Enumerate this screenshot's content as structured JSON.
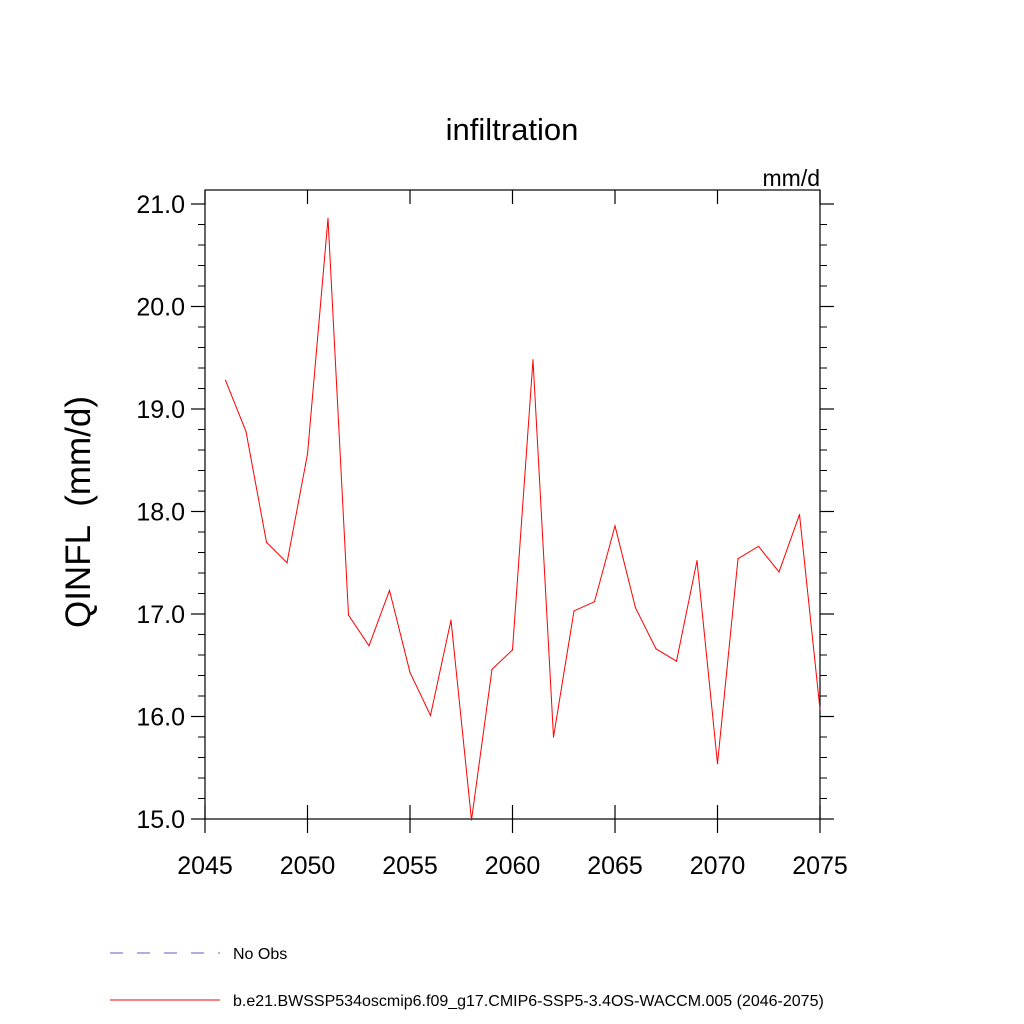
{
  "chart_data": {
    "type": "line",
    "title": "infiltration",
    "units_label": "mm/d",
    "ylabel": "QINFL  (mm/d)",
    "xlabel": "",
    "xlim": [
      2045,
      2075
    ],
    "ylim": [
      15.0,
      21.0
    ],
    "x_ticks": [
      2045,
      2050,
      2055,
      2060,
      2065,
      2070,
      2075
    ],
    "x_tick_labels": [
      "2045",
      "2050",
      "2055",
      "2060",
      "2065",
      "2070",
      "2075"
    ],
    "y_ticks": [
      15.0,
      16.0,
      17.0,
      18.0,
      19.0,
      20.0,
      21.0
    ],
    "y_tick_labels": [
      "15.0",
      "16.0",
      "17.0",
      "18.0",
      "19.0",
      "20.0",
      "21.0"
    ],
    "grid": false,
    "legend_position": "bottom-left",
    "series": [
      {
        "name": "b.e21.BWSSP534oscmip6.f09_g17.CMIP6-SSP5-3.4OS-WACCM.005 (2046-2075)",
        "color": "#ff0000",
        "style": "solid",
        "x": [
          2046,
          2047,
          2048,
          2049,
          2050,
          2051,
          2052,
          2053,
          2054,
          2055,
          2056,
          2057,
          2058,
          2059,
          2060,
          2061,
          2062,
          2063,
          2064,
          2065,
          2066,
          2067,
          2068,
          2069,
          2070,
          2071,
          2072,
          2073,
          2074,
          2075
        ],
        "values": [
          19.28,
          18.78,
          17.7,
          17.5,
          18.56,
          20.86,
          16.99,
          16.69,
          17.23,
          16.43,
          16.01,
          16.94,
          14.99,
          16.46,
          16.65,
          19.48,
          15.8,
          17.03,
          17.12,
          17.86,
          17.06,
          16.66,
          16.54,
          17.52,
          15.54,
          17.54,
          17.66,
          17.41,
          17.97,
          16.07
        ]
      },
      {
        "name": "No Obs",
        "color": "#6a5acd",
        "style": "dashed",
        "x": [],
        "values": []
      }
    ]
  }
}
